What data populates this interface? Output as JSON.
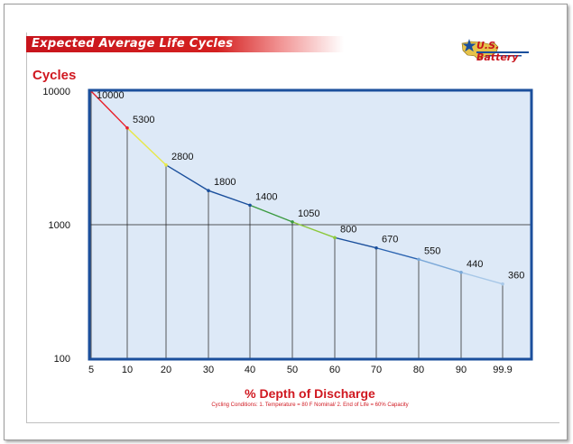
{
  "banner": {
    "title": "Expected Average Life Cycles"
  },
  "logo": {
    "text": "U.S. Battery",
    "icon": "us-map-star-icon"
  },
  "chart_data": {
    "type": "line",
    "ylabel": "Cycles",
    "xlabel": "% Depth of Discharge",
    "note": "Cycling Conditions: 1. Temperature = 80 F Nominal/   2. End of Life = 60% Capacity",
    "yscale": "log",
    "ylim": [
      100,
      10000
    ],
    "yticks": [
      10000,
      1000,
      100
    ],
    "ytick_labels": [
      "10000",
      "1000",
      "100"
    ],
    "categories": [
      "5",
      "10",
      "20",
      "30",
      "40",
      "50",
      "60",
      "70",
      "80",
      "90",
      "99.9"
    ],
    "values": [
      10000,
      5300,
      2800,
      1800,
      1400,
      1050,
      800,
      670,
      550,
      440,
      360
    ],
    "data_labels": [
      "10000",
      "5300",
      "2800",
      "1800",
      "1400",
      "1050",
      "800",
      "670",
      "550",
      "440",
      "360"
    ],
    "segment_colors": [
      "#e8202a",
      "#e8e84a",
      "#1a4f9c",
      "#1a4f9c",
      "#3a9a40",
      "#8cc83c",
      "#1a4f9c",
      "#2a63b0",
      "#7aa8d8",
      "#a8c8e8"
    ],
    "point_colors": [
      "#e8202a",
      "#e8202a",
      "#e8e84a",
      "#1a4f9c",
      "#1a4f9c",
      "#3a9a40",
      "#8cc83c",
      "#1a4f9c",
      "#7aa8d8",
      "#7aa8d8",
      "#a8c8e8"
    ],
    "grid": "reference line at 1000",
    "colors": {
      "plot_bg": "#dde9f7",
      "plot_border": "#1b4f9c",
      "accent": "#d01820"
    }
  }
}
